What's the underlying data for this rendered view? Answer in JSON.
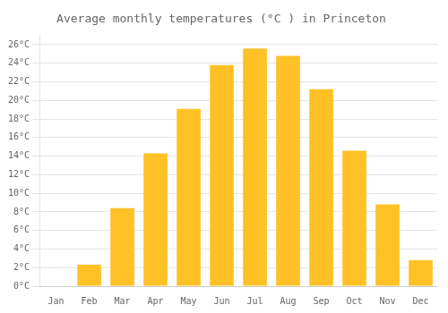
{
  "chart_data": {
    "type": "bar",
    "title": "Average monthly temperatures (°C ) in Princeton",
    "categories": [
      "Jan",
      "Feb",
      "Mar",
      "Apr",
      "May",
      "Jun",
      "Jul",
      "Aug",
      "Sep",
      "Oct",
      "Nov",
      "Dec"
    ],
    "values": [
      0,
      2.3,
      8.4,
      14.3,
      19.1,
      23.8,
      25.6,
      24.8,
      21.2,
      14.6,
      8.8,
      2.8
    ],
    "color": "#FFC125",
    "ylim": [
      0,
      27
    ],
    "yticks": [
      {
        "value": 0,
        "label": "0°C"
      },
      {
        "value": 2,
        "label": "2°C"
      },
      {
        "value": 4,
        "label": "4°C"
      },
      {
        "value": 6,
        "label": "6°C"
      },
      {
        "value": 8,
        "label": "8°C"
      },
      {
        "value": 10,
        "label": "10°C"
      },
      {
        "value": 12,
        "label": "12°C"
      },
      {
        "value": 14,
        "label": "14°C"
      },
      {
        "value": 16,
        "label": "16°C"
      },
      {
        "value": 18,
        "label": "18°C"
      },
      {
        "value": 20,
        "label": "20°C"
      },
      {
        "value": 22,
        "label": "22°C"
      },
      {
        "value": 24,
        "label": "24°C"
      },
      {
        "value": 26,
        "label": "26°C"
      }
    ],
    "grid": true
  }
}
